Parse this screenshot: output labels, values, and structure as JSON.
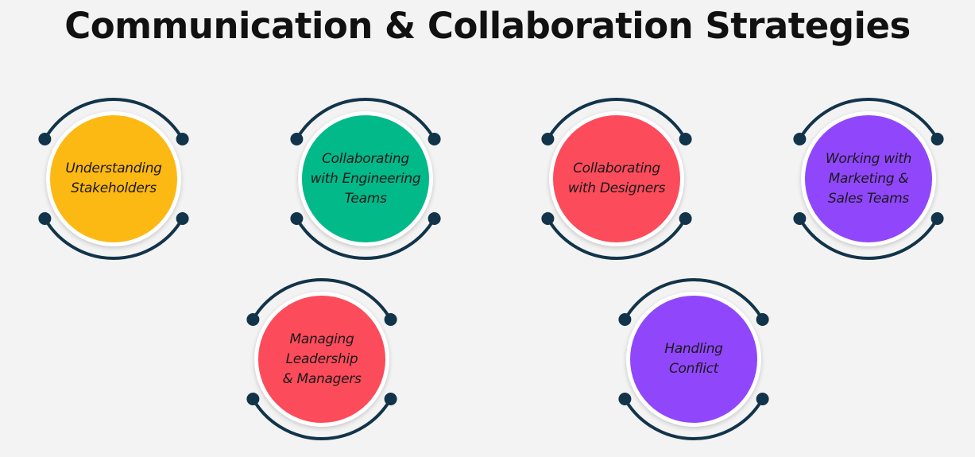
{
  "title": "Communication & Collaboration Strategies",
  "colors": {
    "arc": "#12344a",
    "yellow": "#fdb913",
    "green": "#02b98a",
    "red": "#fc4b5b",
    "purple": "#9047fb"
  },
  "nodes": [
    {
      "lines": [
        "Understanding",
        "Stakeholders"
      ],
      "color": "#fdb913"
    },
    {
      "lines": [
        "Collaborating",
        "with Engineering",
        "Teams"
      ],
      "color": "#02b98a"
    },
    {
      "lines": [
        "Collaborating",
        "with Designers"
      ],
      "color": "#fc4b5b"
    },
    {
      "lines": [
        "Working with",
        "Marketing &",
        "Sales Teams"
      ],
      "color": "#9047fb"
    },
    {
      "lines": [
        "Managing",
        "Leadership",
        "& Managers"
      ],
      "color": "#fc4b5b"
    },
    {
      "lines": [
        "Handling",
        "Conflict"
      ],
      "color": "#9047fb"
    }
  ]
}
